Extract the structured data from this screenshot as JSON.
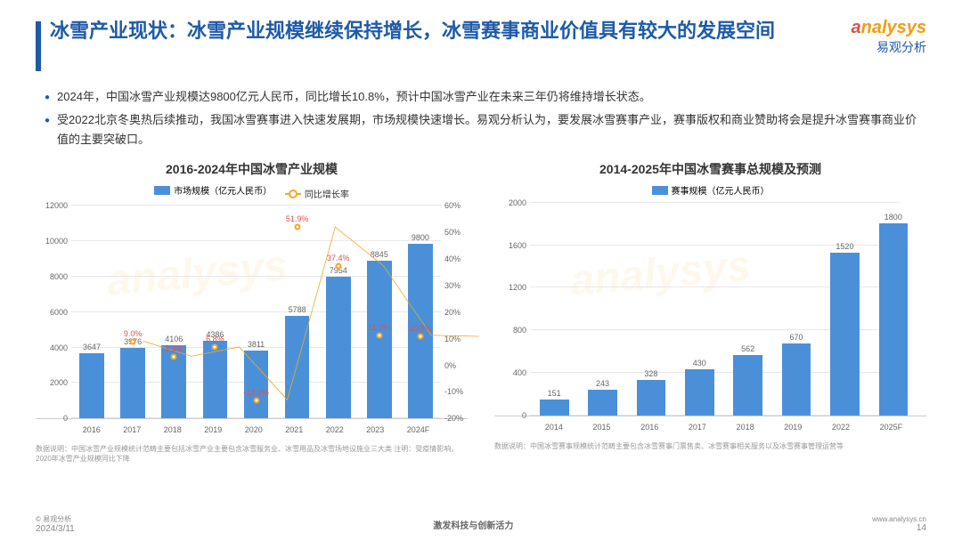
{
  "header": {
    "title": "冰雪产业现状：冰雪产业规模继续保持增长，冰雪赛事商业价值具有较大的发展空间",
    "logo_main_html": "analysys",
    "logo_sub": "易观分析"
  },
  "bullets": [
    "2024年，中国冰雪产业规模达9800亿元人民币，同比增长10.8%，预计中国冰雪产业在未来三年仍将维持增长状态。",
    "受2022北京冬奥热后续推动，我国冰雪赛事进入快速发展期，市场规模快速增长。易观分析认为，要发展冰雪赛事产业，赛事版权和商业赞助将会是提升冰雪赛事商业价值的主要突破口。"
  ],
  "chart1": {
    "type": "bar+line",
    "title": "2016-2024年中国冰雪产业规模",
    "legend_bar": "市场规模（亿元人民币）",
    "legend_line": "同比增长率",
    "bar_color": "#4a90d9",
    "line_color": "#f5a623",
    "background_color": "#ffffff",
    "grid_color": "#e8e8e8",
    "categories": [
      "2016",
      "2017",
      "2018",
      "2019",
      "2020",
      "2021",
      "2022",
      "2023",
      "2024F"
    ],
    "bar_values": [
      3647,
      3976,
      4106,
      4386,
      3811,
      5788,
      7954,
      8845,
      9800
    ],
    "line_values_pct": [
      null,
      9.0,
      3.3,
      6.8,
      -13.1,
      51.9,
      37.4,
      11.2,
      10.8
    ],
    "line_labels": [
      null,
      "9.0%",
      "3.3%",
      "6.8%",
      "-13.1%",
      "51.9%",
      "37.4%",
      "11.2%",
      "10.8%"
    ],
    "y_left": {
      "min": 0,
      "max": 12000,
      "step": 2000
    },
    "y_right": {
      "min": -20,
      "max": 60,
      "step": 10,
      "suffix": "%"
    },
    "note": "数据说明：中国冰雪产业规模统计范畴主要包括冰雪产业主要包含冰雪服务业、冰雪用品及冰雪场地设施业三大类\n注明：受疫情影响，2020年冰雪产业规模同比下降"
  },
  "chart2": {
    "type": "bar",
    "title": "2014-2025年中国冰雪赛事总规模及预测",
    "legend_bar": "赛事规模（亿元人民币）",
    "bar_color": "#4a90d9",
    "background_color": "#ffffff",
    "grid_color": "#e8e8e8",
    "categories": [
      "2014",
      "2015",
      "2016",
      "2017",
      "2018",
      "2019",
      "2022",
      "2025F"
    ],
    "bar_values": [
      151,
      243,
      328,
      430,
      562,
      670,
      1520,
      1800
    ],
    "y_left": {
      "min": 0,
      "max": 2000,
      "step": 400
    },
    "note": "数据说明：中国冰雪赛事规模统计范畴主要包含冰雪赛事门票售卖、冰雪赛事相关服务以及冰雪赛事管理运营等"
  },
  "footer": {
    "copyright": "© 易观分析",
    "date": "2024/3/11",
    "center": "激发科技与创新活力",
    "url": "www.analysys.cn",
    "page": "14"
  }
}
